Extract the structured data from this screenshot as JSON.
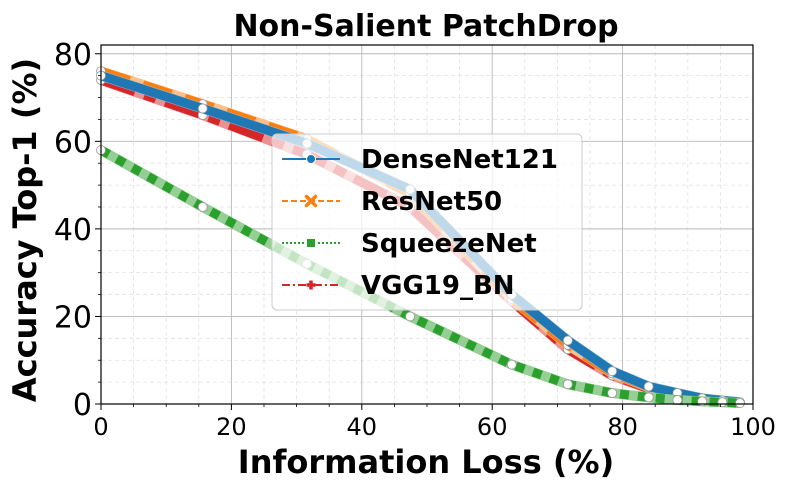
{
  "chart_data": {
    "type": "line",
    "title": "Non-Salient PatchDrop",
    "xlabel": "Information Loss (%)",
    "ylabel": "Accuracy Top-1 (%)",
    "xlim": [
      0,
      100
    ],
    "ylim": [
      0,
      82
    ],
    "xticks": [
      0,
      20,
      40,
      60,
      80,
      100
    ],
    "yticks": [
      0,
      20,
      40,
      60,
      80
    ],
    "grid": true,
    "legend_position": "center",
    "series": [
      {
        "name": "DenseNet121",
        "color": "#1f77b4",
        "faded_color": "#8fbbd9",
        "linestyle": "solid",
        "marker": "circle",
        "x": [
          0,
          15.6,
          31.6,
          47.4,
          63.0,
          71.6,
          78.4,
          84.0,
          88.4,
          92.2,
          95.3,
          98.0
        ],
        "y": [
          75.0,
          67.5,
          59.5,
          49.0,
          25.0,
          14.5,
          7.5,
          4.0,
          2.5,
          1.3,
          0.8,
          0.4
        ]
      },
      {
        "name": "ResNet50",
        "color": "#ff7f0e",
        "faded_color": "#ffbf86",
        "linestyle": "dashed",
        "marker": "x",
        "x": [
          0,
          15.6,
          31.6,
          47.4,
          63.0,
          71.6,
          78.4,
          84.0,
          88.4,
          92.2,
          95.3,
          98.0
        ],
        "y": [
          76.0,
          68.5,
          60.5,
          48.0,
          24.0,
          13.5,
          7.0,
          3.8,
          2.2,
          1.2,
          0.7,
          0.3
        ]
      },
      {
        "name": "SqueezeNet",
        "color": "#2ca02c",
        "faded_color": "#95cf95",
        "linestyle": "dotted",
        "marker": "square",
        "x": [
          0,
          15.6,
          31.6,
          47.4,
          63.0,
          71.6,
          78.4,
          84.0,
          88.4,
          92.2,
          95.3,
          98.0
        ],
        "y": [
          58.0,
          45.0,
          32.0,
          20.0,
          9.0,
          4.5,
          2.5,
          1.5,
          0.9,
          0.6,
          0.4,
          0.2
        ]
      },
      {
        "name": "VGG19_BN",
        "color": "#d62728",
        "faded_color": "#ea9293",
        "linestyle": "dashdot",
        "marker": "plus",
        "x": [
          0,
          15.6,
          31.6,
          47.4,
          63.0,
          71.6,
          78.4,
          84.0,
          88.4,
          92.2,
          95.3,
          98.0
        ],
        "y": [
          74.0,
          66.0,
          57.0,
          45.0,
          23.5,
          12.5,
          6.5,
          3.5,
          2.0,
          1.1,
          0.6,
          0.3
        ]
      }
    ]
  }
}
